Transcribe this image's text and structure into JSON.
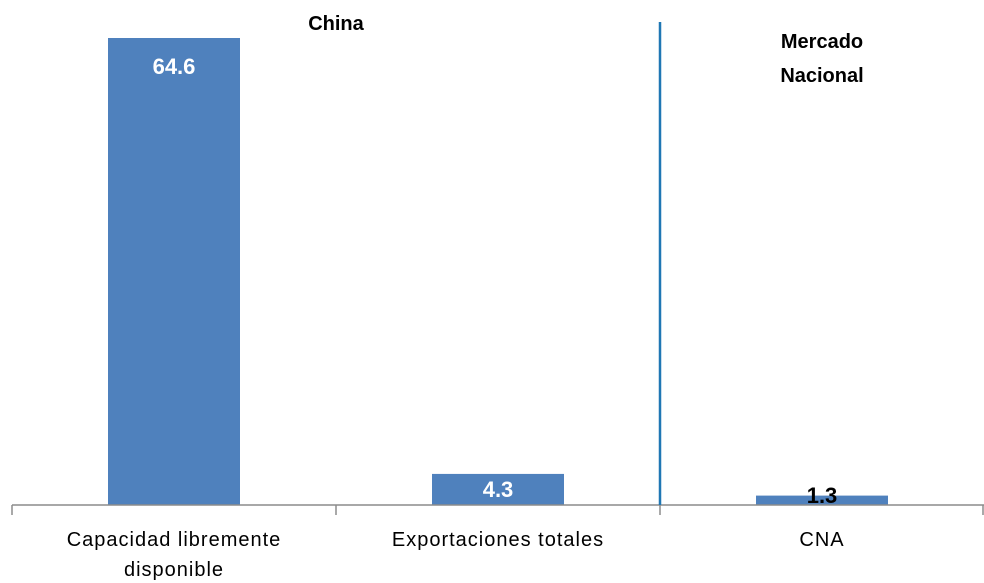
{
  "chart_data": {
    "type": "bar",
    "categories": [
      "Capacidad libremente disponible",
      "Exportaciones totales",
      "CNA"
    ],
    "category_lines": [
      [
        "Capacidad libremente",
        "disponible"
      ],
      [
        "Exportaciones totales"
      ],
      [
        "CNA"
      ]
    ],
    "values": [
      64.6,
      4.3,
      1.3
    ],
    "value_labels": [
      "64.6",
      "4.3",
      "1.3"
    ],
    "groups": [
      {
        "lines": [
          "China"
        ],
        "categories": [
          0,
          1
        ]
      },
      {
        "lines": [
          "Mercado",
          "Nacional"
        ],
        "categories": [
          2
        ]
      }
    ],
    "ylim": [
      0,
      70
    ],
    "grid": false,
    "legend": "none",
    "bar_color": "#4f81bd",
    "divider_color": "#1f77b4"
  }
}
